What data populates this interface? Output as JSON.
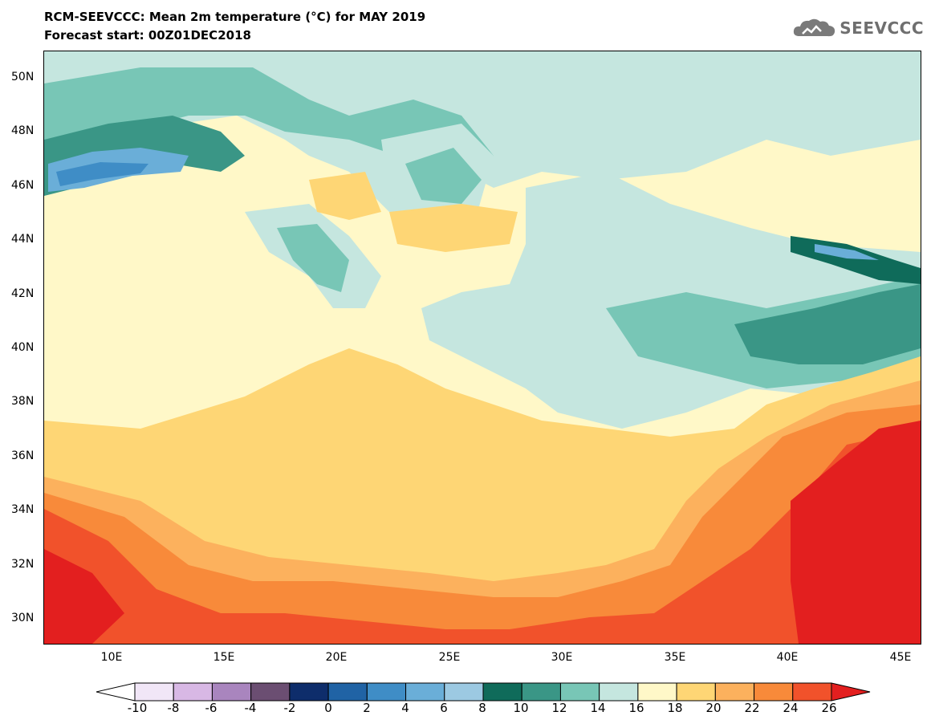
{
  "title_line1": "RCM-SEEVCCC: Mean 2m temperature (°C) for MAY 2019",
  "title_line2": "Forecast start: 00Z01DEC2018",
  "logo_text": "SEEVCCC",
  "lat_labels": [
    "50N",
    "48N",
    "46N",
    "44N",
    "42N",
    "40N",
    "38N",
    "36N",
    "34N",
    "32N",
    "30N"
  ],
  "lon_labels": [
    "10E",
    "15E",
    "20E",
    "25E",
    "30E",
    "35E",
    "40E",
    "45E"
  ],
  "colorbar": {
    "labels": [
      "-10",
      "-8",
      "-6",
      "-4",
      "-2",
      "0",
      "2",
      "4",
      "6",
      "8",
      "10",
      "12",
      "14",
      "16",
      "18",
      "20",
      "22",
      "24",
      "26"
    ],
    "colors": [
      "#f1e6f7",
      "#d8b8e5",
      "#a985be",
      "#6b4e72",
      "#0e2d6b",
      "#2063a5",
      "#3f8dc6",
      "#6aaed8",
      "#9cc9e2",
      "#0f6b5a",
      "#3a9686",
      "#78c6b6",
      "#c5e6df",
      "#fff8c8",
      "#fed675",
      "#fcb15d",
      "#f88a3a",
      "#f1522b"
    ],
    "under_color": "#ffffff",
    "over_color": "#e31f1f"
  },
  "field_colors": {
    "t14": "#c5e6df",
    "t12": "#78c6b6",
    "t10": "#3a9686",
    "t8": "#0f6b5a",
    "t6": "#6aaed8",
    "t4": "#3f8dc6",
    "t18": "#fed675",
    "t20": "#fcb15d",
    "t22": "#f88a3a",
    "t24": "#f1522b",
    "t26": "#e31f1f"
  }
}
